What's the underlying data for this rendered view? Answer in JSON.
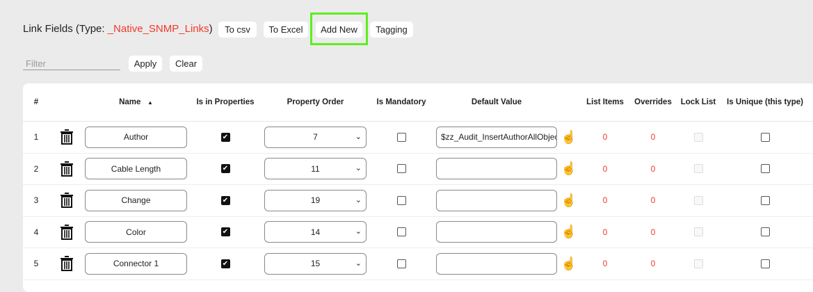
{
  "header": {
    "title_prefix": "Link Fields (Type: ",
    "type_name": "_Native_SNMP_Links",
    "title_suffix": ")"
  },
  "toolbar": {
    "to_csv": "To csv",
    "to_excel": "To Excel",
    "add_new": "Add New",
    "tagging": "Tagging"
  },
  "filter": {
    "placeholder": "Filter",
    "value": "",
    "apply": "Apply",
    "clear": "Clear"
  },
  "colors": {
    "accent": "#f0392b",
    "highlight": "#5cf01c"
  },
  "table": {
    "columns": [
      "#",
      "Name",
      "Is in Properties",
      "Property Order",
      "Is Mandatory",
      "Default Value",
      "List Items",
      "Overrides",
      "Lock List",
      "Is Unique (this type)"
    ],
    "sort_indicator": "▲",
    "rows": [
      {
        "num": "1",
        "name": "Author",
        "in_props": true,
        "order": "7",
        "mandatory": false,
        "default": "$zz_Audit_InsertAuthorAllObjec",
        "list_items": "0",
        "overrides": "0",
        "lock": false,
        "unique": false
      },
      {
        "num": "2",
        "name": "Cable Length",
        "in_props": true,
        "order": "11",
        "mandatory": false,
        "default": "",
        "list_items": "0",
        "overrides": "0",
        "lock": false,
        "unique": false
      },
      {
        "num": "3",
        "name": "Change",
        "in_props": true,
        "order": "19",
        "mandatory": false,
        "default": "",
        "list_items": "0",
        "overrides": "0",
        "lock": false,
        "unique": false
      },
      {
        "num": "4",
        "name": "Color",
        "in_props": true,
        "order": "14",
        "mandatory": false,
        "default": "",
        "list_items": "0",
        "overrides": "0",
        "lock": false,
        "unique": false
      },
      {
        "num": "5",
        "name": "Connector 1",
        "in_props": true,
        "order": "15",
        "mandatory": false,
        "default": "",
        "list_items": "0",
        "overrides": "0",
        "lock": false,
        "unique": false
      }
    ]
  }
}
